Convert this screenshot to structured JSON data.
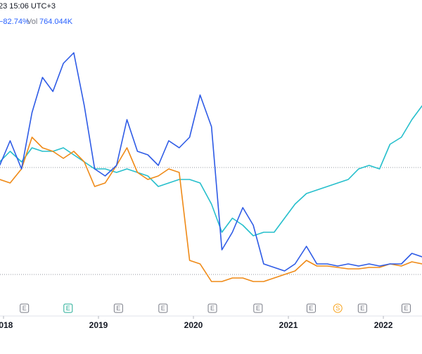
{
  "chart_data": {
    "type": "line",
    "header": {
      "time": "23 15:06 UTC+3",
      "change": "−82.74%",
      "vol_label": "Vol",
      "vol_value": "764.044K"
    },
    "x": [
      2017.96,
      2018.07,
      2018.19,
      2018.3,
      2018.41,
      2018.52,
      2018.63,
      2018.74,
      2018.85,
      2018.96,
      2019.07,
      2019.19,
      2019.3,
      2019.41,
      2019.52,
      2019.63,
      2019.74,
      2019.85,
      2019.96,
      2020.07,
      2020.19,
      2020.3,
      2020.41,
      2020.52,
      2020.63,
      2020.74,
      2020.85,
      2020.96,
      2021.07,
      2021.19,
      2021.3,
      2021.41,
      2021.52,
      2021.63,
      2021.74,
      2021.85,
      2021.96,
      2022.07,
      2022.19,
      2022.3,
      2022.41
    ],
    "series": [
      {
        "color": "#26bfcc",
        "values": [
          190,
          205,
          190,
          210,
          205,
          205,
          210,
          200,
          190,
          180,
          180,
          175,
          180,
          175,
          170,
          155,
          160,
          165,
          165,
          160,
          130,
          90,
          110,
          100,
          85,
          90,
          90,
          110,
          130,
          145,
          150,
          155,
          160,
          165,
          180,
          185,
          180,
          215,
          225,
          250,
          270
        ]
      },
      {
        "color": "#ef8a17",
        "values": [
          165,
          160,
          180,
          225,
          210,
          205,
          195,
          205,
          190,
          155,
          160,
          185,
          210,
          175,
          165,
          170,
          180,
          175,
          50,
          45,
          20,
          20,
          25,
          25,
          20,
          20,
          25,
          30,
          35,
          50,
          42,
          42,
          40,
          38,
          38,
          40,
          40,
          45,
          42,
          48,
          45
        ]
      },
      {
        "color": "#2e5be6",
        "values": [
          185,
          220,
          180,
          260,
          310,
          290,
          330,
          345,
          270,
          180,
          170,
          185,
          250,
          205,
          200,
          185,
          220,
          210,
          225,
          285,
          240,
          65,
          90,
          125,
          100,
          45,
          40,
          35,
          45,
          70,
          45,
          45,
          42,
          45,
          42,
          45,
          42,
          45,
          45,
          60,
          55
        ]
      }
    ],
    "hlines": [
      182,
      30
    ],
    "xlim": [
      2017.963,
      2022.407
    ],
    "xticks": [
      2018,
      2019,
      2020,
      2021,
      2022
    ],
    "ylim": [
      0,
      380
    ],
    "events": [
      {
        "x": 2018.22,
        "label": "E",
        "color": "#787b86"
      },
      {
        "x": 2018.68,
        "label": "E",
        "color": "#22ab94"
      },
      {
        "x": 2019.21,
        "label": "E",
        "color": "#787b86"
      },
      {
        "x": 2019.68,
        "label": "E",
        "color": "#787b86"
      },
      {
        "x": 2020.2,
        "label": "E",
        "color": "#787b86"
      },
      {
        "x": 2020.68,
        "label": "E",
        "color": "#787b86"
      },
      {
        "x": 2021.24,
        "label": "E",
        "color": "#787b86"
      },
      {
        "x": 2021.52,
        "label": "S",
        "color": "#f7a21b"
      },
      {
        "x": 2021.78,
        "label": "E",
        "color": "#787b86"
      },
      {
        "x": 2022.24,
        "label": "E",
        "color": "#787b86"
      }
    ]
  }
}
